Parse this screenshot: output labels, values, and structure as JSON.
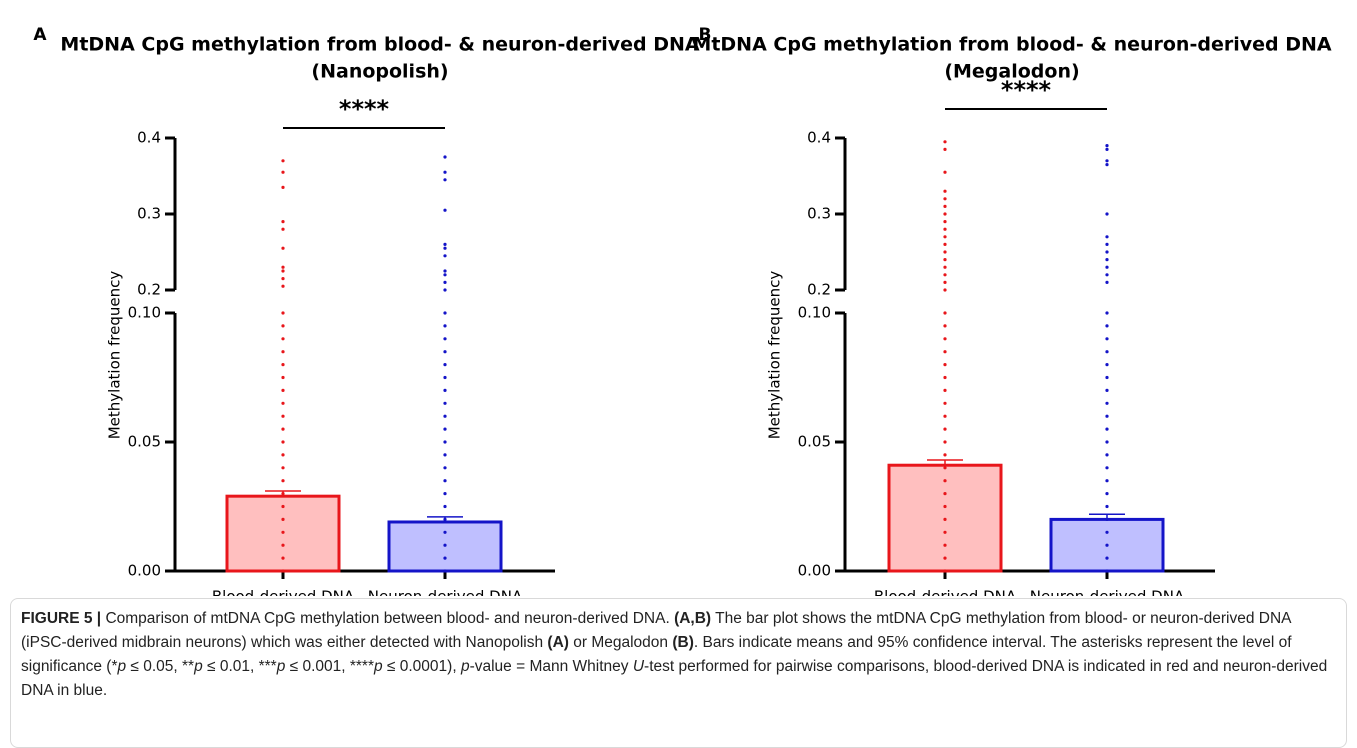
{
  "chart_data": [
    {
      "type": "bar",
      "panel_label": "A",
      "title": "MtDNA CpG methylation from blood- & neuron-derived DNA",
      "subtitle": "(Nanopolish)",
      "y_label": "Methylation frequency",
      "categories": [
        "Blood-derived DNA",
        "Neuron-derived DNA"
      ],
      "values": [
        0.029,
        0.019
      ],
      "errors": [
        0.002,
        0.002
      ],
      "colors": [
        "#e8161b",
        "#1414c8"
      ],
      "fill_colors": [
        "#ffbfbf",
        "#bfbfff"
      ],
      "points": [
        [
          0.37,
          0.355,
          0.335,
          0.29,
          0.28,
          0.255,
          0.23,
          0.225,
          0.215,
          0.205,
          0.1,
          0.095,
          0.09,
          0.085,
          0.08,
          0.075,
          0.07,
          0.065,
          0.06,
          0.055,
          0.05,
          0.045,
          0.04,
          0.035,
          0.03,
          0.025,
          0.02,
          0.015,
          0.01,
          0.005,
          0
        ],
        [
          0.375,
          0.355,
          0.345,
          0.305,
          0.26,
          0.255,
          0.245,
          0.225,
          0.22,
          0.21,
          0.2,
          0.1,
          0.095,
          0.09,
          0.085,
          0.08,
          0.075,
          0.07,
          0.065,
          0.06,
          0.055,
          0.05,
          0.045,
          0.04,
          0.035,
          0.03,
          0.025,
          0.02,
          0.015,
          0.01,
          0.005,
          0
        ]
      ],
      "ylim": [
        0,
        0.4
      ],
      "axis_break": [
        0.1,
        0.2
      ],
      "yticks": [
        {
          "value": 0,
          "label": "0.00"
        },
        {
          "value": 0.05,
          "label": "0.05"
        },
        {
          "value": 0.1,
          "label": "0.10"
        },
        0.2,
        0.3,
        0.4
      ],
      "significance": "****"
    },
    {
      "type": "bar",
      "panel_label": "B",
      "title": "MtDNA CpG methylation from blood- & neuron-derived DNA",
      "subtitle": "(Megalodon)",
      "y_label": "Methylation frequency",
      "categories": [
        "Blood-derived DNA",
        "Neuron-derived DNA"
      ],
      "values": [
        0.041,
        0.02
      ],
      "errors": [
        0.002,
        0.002
      ],
      "colors": [
        "#e8161b",
        "#1414c8"
      ],
      "fill_colors": [
        "#ffbfbf",
        "#bfbfff"
      ],
      "points": [
        [
          0.395,
          0.385,
          0.355,
          0.33,
          0.32,
          0.31,
          0.3,
          0.29,
          0.28,
          0.27,
          0.26,
          0.25,
          0.24,
          0.23,
          0.22,
          0.21,
          0.2,
          0.1,
          0.095,
          0.09,
          0.085,
          0.08,
          0.075,
          0.07,
          0.065,
          0.06,
          0.055,
          0.05,
          0.045,
          0.04,
          0.035,
          0.03,
          0.025,
          0.02,
          0.015,
          0.01,
          0.005,
          0
        ],
        [
          0.39,
          0.385,
          0.37,
          0.365,
          0.3,
          0.27,
          0.26,
          0.25,
          0.24,
          0.23,
          0.22,
          0.21,
          0.1,
          0.095,
          0.09,
          0.085,
          0.08,
          0.075,
          0.07,
          0.065,
          0.06,
          0.055,
          0.05,
          0.045,
          0.04,
          0.035,
          0.03,
          0.025,
          0.02,
          0.015,
          0.01,
          0.005,
          0
        ]
      ],
      "ylim": [
        0,
        0.4
      ],
      "axis_break": [
        0.1,
        0.2
      ],
      "yticks": [
        {
          "value": 0,
          "label": "0.00"
        },
        {
          "value": 0.05,
          "label": "0.05"
        },
        {
          "value": 0.1,
          "label": "0.10"
        },
        0.2,
        0.3,
        0.4
      ],
      "significance": "****"
    }
  ],
  "caption": [
    "FIGURE 5 |",
    " Comparison of mtDNA CpG methylation between blood- and neuron-derived DNA. ",
    "(A,B)",
    " The bar plot shows the mtDNA CpG methylation from blood- or neuron-derived DNA (iPSC-derived midbrain neurons) which was either detected with Nanopolish ",
    "(A)",
    " or Megalodon ",
    "(B)",
    ". Bars indicate means and 95% confidence interval. The asterisks represent the level of significance (*",
    "p",
    " ≤ 0.05, **",
    "p",
    " ≤ 0.01, ***",
    "p",
    " ≤ 0.001, ****",
    "p",
    " ≤ 0.0001), ",
    "p",
    "-value = Mann Whitney ",
    "U",
    "-test performed for pairwise comparisons, blood-derived DNA is indicated in red and neuron-derived DNA in blue."
  ]
}
